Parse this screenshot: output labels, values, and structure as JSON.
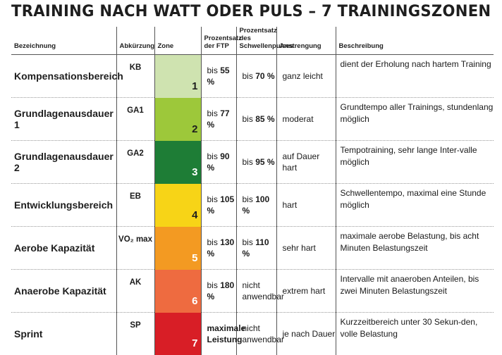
{
  "title": "TRAINING NACH WATT ODER PULS – 7 TRAININGSZONEN",
  "columns": [
    "Bezeichnung",
    "Abkürzung",
    "Zone",
    "Prozentsatz der FTP",
    "Prozentsatz des Schwellenpulses",
    "Anstrengung",
    "Beschreibung"
  ],
  "rows": [
    {
      "name": "Kompensationsbereich",
      "abbr": "KB",
      "zone": "1",
      "zone_color": "#cfe3b0",
      "zone_text_color": "#1e1e1e",
      "ftp_prefix": "bis",
      "ftp_value": "55 %",
      "hr_prefix": "bis",
      "hr_value": "70 %",
      "effort": "ganz leicht",
      "desc": "dient der Erholung nach hartem Training"
    },
    {
      "name": "Grundlagenausdauer 1",
      "abbr": "GA1",
      "zone": "2",
      "zone_color": "#9dc83a",
      "zone_text_color": "#1e1e1e",
      "ftp_prefix": "bis",
      "ftp_value": "77 %",
      "hr_prefix": "bis",
      "hr_value": "85 %",
      "effort": "moderat",
      "desc": "Grundtempo aller Trainings, stundenlang möglich"
    },
    {
      "name": "Grundlagenausdauer 2",
      "abbr": "GA2",
      "zone": "3",
      "zone_color": "#1e7d36",
      "zone_text_color": "#ffffff",
      "ftp_prefix": "bis",
      "ftp_value": "90 %",
      "hr_prefix": "bis",
      "hr_value": "95 %",
      "effort": "auf Dauer hart",
      "desc": "Tempotraining, sehr lange Inter-valle möglich"
    },
    {
      "name": "Entwicklungsbereich",
      "abbr": "EB",
      "zone": "4",
      "zone_color": "#f7d417",
      "zone_text_color": "#1e1e1e",
      "ftp_prefix": "bis",
      "ftp_value": "105 %",
      "hr_prefix": "bis",
      "hr_value": "100 %",
      "effort": "hart",
      "desc": "Schwellentempo, maximal eine Stunde möglich"
    },
    {
      "name": "Aerobe Kapazität",
      "abbr": "VO₂ max",
      "zone": "5",
      "zone_color": "#f39a22",
      "zone_text_color": "#ffffff",
      "ftp_prefix": "bis",
      "ftp_value": "130 %",
      "hr_prefix": "bis",
      "hr_value": "110 %",
      "effort": "sehr hart",
      "desc": "maximale aerobe Belastung, bis acht Minuten Belastungszeit"
    },
    {
      "name": "Anaerobe Kapazität",
      "abbr": "AK",
      "zone": "6",
      "zone_color": "#ee6b40",
      "zone_text_color": "#ffffff",
      "ftp_prefix": "bis",
      "ftp_value": "180 %",
      "hr_prefix": "",
      "hr_value": "nicht anwendbar",
      "effort": "extrem hart",
      "desc": "Intervalle mit anaeroben Anteilen, bis zwei Minuten Belastungszeit"
    },
    {
      "name": "Sprint",
      "abbr": "SP",
      "zone": "7",
      "zone_color": "#d81e26",
      "zone_text_color": "#ffffff",
      "ftp_prefix": "",
      "ftp_value": "maximale Leistung",
      "hr_prefix": "",
      "hr_value": "nicht anwendbar",
      "effort": "je nach Dauer",
      "desc": "Kurzzeitbereich unter 30 Sekun-den, volle Belastung"
    }
  ]
}
